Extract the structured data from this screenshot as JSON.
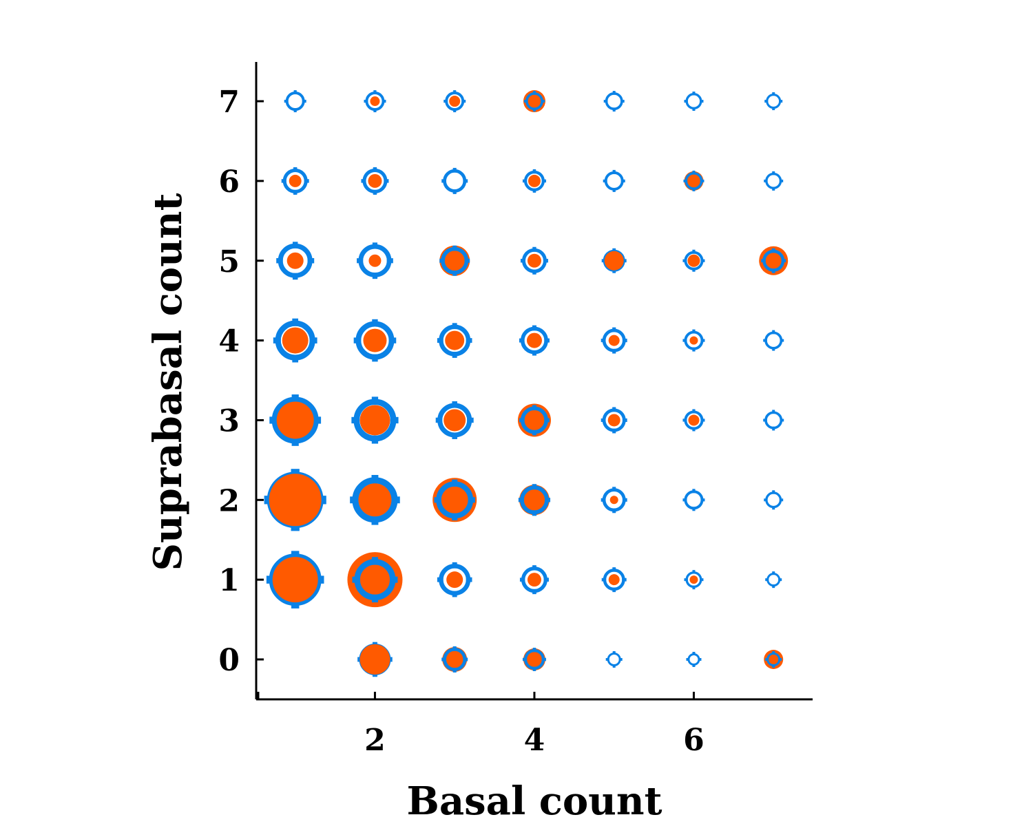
{
  "chart_data": {
    "type": "scatter",
    "title": "",
    "xlabel": "Basal count",
    "ylabel": "Suprabasal count",
    "xlim": [
      0.5,
      7.5
    ],
    "ylim": [
      -0.5,
      7.5
    ],
    "xticks": [
      2,
      4,
      6
    ],
    "yticks": [
      0,
      1,
      2,
      3,
      4,
      5,
      6,
      7
    ],
    "grid": false,
    "legend": "none",
    "marker_encoding": "bubble size = relative frequency; orange filled circle vs blue ring+cross",
    "colors": {
      "orange": "#ff5a00",
      "blue": "#0a82e6"
    },
    "series": [
      {
        "color": "#0a82e6",
        "marker": "ring-cross",
        "points": [
          {
            "x": 1,
            "y": 1,
            "r": 38
          },
          {
            "x": 1,
            "y": 2,
            "r": 41
          },
          {
            "x": 1,
            "y": 3,
            "r": 34
          },
          {
            "x": 1,
            "y": 4,
            "r": 29
          },
          {
            "x": 1,
            "y": 5,
            "r": 25
          },
          {
            "x": 1,
            "y": 6,
            "r": 18
          },
          {
            "x": 1,
            "y": 7,
            "r": 14
          },
          {
            "x": 2,
            "y": 0,
            "r": 23
          },
          {
            "x": 2,
            "y": 1,
            "r": 30
          },
          {
            "x": 2,
            "y": 2,
            "r": 33
          },
          {
            "x": 2,
            "y": 3,
            "r": 31
          },
          {
            "x": 2,
            "y": 4,
            "r": 28
          },
          {
            "x": 2,
            "y": 5,
            "r": 24
          },
          {
            "x": 2,
            "y": 6,
            "r": 18
          },
          {
            "x": 2,
            "y": 7,
            "r": 14
          },
          {
            "x": 3,
            "y": 0,
            "r": 17
          },
          {
            "x": 3,
            "y": 1,
            "r": 23
          },
          {
            "x": 3,
            "y": 2,
            "r": 27
          },
          {
            "x": 3,
            "y": 3,
            "r": 25
          },
          {
            "x": 3,
            "y": 4,
            "r": 23
          },
          {
            "x": 3,
            "y": 5,
            "r": 20
          },
          {
            "x": 3,
            "y": 6,
            "r": 17
          },
          {
            "x": 3,
            "y": 7,
            "r": 14
          },
          {
            "x": 4,
            "y": 0,
            "r": 15
          },
          {
            "x": 4,
            "y": 1,
            "r": 19
          },
          {
            "x": 4,
            "y": 2,
            "r": 21
          },
          {
            "x": 4,
            "y": 3,
            "r": 20
          },
          {
            "x": 4,
            "y": 4,
            "r": 20
          },
          {
            "x": 4,
            "y": 5,
            "r": 18
          },
          {
            "x": 4,
            "y": 6,
            "r": 15
          },
          {
            "x": 4,
            "y": 7,
            "r": 13
          },
          {
            "x": 5,
            "y": 0,
            "r": 10
          },
          {
            "x": 5,
            "y": 1,
            "r": 16
          },
          {
            "x": 5,
            "y": 2,
            "r": 17
          },
          {
            "x": 5,
            "y": 3,
            "r": 17
          },
          {
            "x": 5,
            "y": 4,
            "r": 17
          },
          {
            "x": 5,
            "y": 5,
            "r": 16
          },
          {
            "x": 5,
            "y": 6,
            "r": 14
          },
          {
            "x": 5,
            "y": 7,
            "r": 13
          },
          {
            "x": 6,
            "y": 0,
            "r": 9
          },
          {
            "x": 6,
            "y": 1,
            "r": 12
          },
          {
            "x": 6,
            "y": 2,
            "r": 14
          },
          {
            "x": 6,
            "y": 3,
            "r": 14
          },
          {
            "x": 6,
            "y": 4,
            "r": 14
          },
          {
            "x": 6,
            "y": 5,
            "r": 14
          },
          {
            "x": 6,
            "y": 6,
            "r": 13
          },
          {
            "x": 6,
            "y": 7,
            "r": 12
          },
          {
            "x": 7,
            "y": 0,
            "r": 10
          },
          {
            "x": 7,
            "y": 1,
            "r": 10
          },
          {
            "x": 7,
            "y": 2,
            "r": 12
          },
          {
            "x": 7,
            "y": 3,
            "r": 13
          },
          {
            "x": 7,
            "y": 4,
            "r": 13
          },
          {
            "x": 7,
            "y": 5,
            "r": 16
          },
          {
            "x": 7,
            "y": 6,
            "r": 12
          },
          {
            "x": 7,
            "y": 7,
            "r": 11
          }
        ]
      },
      {
        "color": "#ff5a00",
        "marker": "filled-circle",
        "points": [
          {
            "x": 1,
            "y": 1,
            "r": 33
          },
          {
            "x": 1,
            "y": 2,
            "r": 38
          },
          {
            "x": 1,
            "y": 3,
            "r": 27
          },
          {
            "x": 1,
            "y": 4,
            "r": 19
          },
          {
            "x": 1,
            "y": 5,
            "r": 12
          },
          {
            "x": 1,
            "y": 6,
            "r": 9
          },
          {
            "x": 1,
            "y": 7,
            "r": 0
          },
          {
            "x": 2,
            "y": 0,
            "r": 22
          },
          {
            "x": 2,
            "y": 1,
            "r": 40
          },
          {
            "x": 2,
            "y": 2,
            "r": 24
          },
          {
            "x": 2,
            "y": 3,
            "r": 22
          },
          {
            "x": 2,
            "y": 4,
            "r": 17
          },
          {
            "x": 2,
            "y": 5,
            "r": 9
          },
          {
            "x": 2,
            "y": 6,
            "r": 10
          },
          {
            "x": 2,
            "y": 7,
            "r": 7
          },
          {
            "x": 3,
            "y": 0,
            "r": 18
          },
          {
            "x": 3,
            "y": 1,
            "r": 12
          },
          {
            "x": 3,
            "y": 2,
            "r": 32
          },
          {
            "x": 3,
            "y": 3,
            "r": 16
          },
          {
            "x": 3,
            "y": 4,
            "r": 14
          },
          {
            "x": 3,
            "y": 5,
            "r": 22
          },
          {
            "x": 3,
            "y": 6,
            "r": 0
          },
          {
            "x": 3,
            "y": 7,
            "r": 8
          },
          {
            "x": 4,
            "y": 0,
            "r": 16
          },
          {
            "x": 4,
            "y": 1,
            "r": 10
          },
          {
            "x": 4,
            "y": 2,
            "r": 22
          },
          {
            "x": 4,
            "y": 3,
            "r": 24
          },
          {
            "x": 4,
            "y": 4,
            "r": 11
          },
          {
            "x": 4,
            "y": 5,
            "r": 10
          },
          {
            "x": 4,
            "y": 6,
            "r": 9
          },
          {
            "x": 4,
            "y": 7,
            "r": 16
          },
          {
            "x": 5,
            "y": 0,
            "r": 0
          },
          {
            "x": 5,
            "y": 1,
            "r": 8
          },
          {
            "x": 5,
            "y": 2,
            "r": 6
          },
          {
            "x": 5,
            "y": 3,
            "r": 9
          },
          {
            "x": 5,
            "y": 4,
            "r": 8
          },
          {
            "x": 5,
            "y": 5,
            "r": 14
          },
          {
            "x": 5,
            "y": 6,
            "r": 0
          },
          {
            "x": 5,
            "y": 7,
            "r": 0
          },
          {
            "x": 6,
            "y": 0,
            "r": 0
          },
          {
            "x": 6,
            "y": 1,
            "r": 6
          },
          {
            "x": 6,
            "y": 2,
            "r": 0
          },
          {
            "x": 6,
            "y": 3,
            "r": 8
          },
          {
            "x": 6,
            "y": 4,
            "r": 6
          },
          {
            "x": 6,
            "y": 5,
            "r": 9
          },
          {
            "x": 6,
            "y": 6,
            "r": 14
          },
          {
            "x": 6,
            "y": 7,
            "r": 0
          },
          {
            "x": 7,
            "y": 0,
            "r": 14
          },
          {
            "x": 7,
            "y": 1,
            "r": 0
          },
          {
            "x": 7,
            "y": 2,
            "r": 0
          },
          {
            "x": 7,
            "y": 3,
            "r": 0
          },
          {
            "x": 7,
            "y": 4,
            "r": 0
          },
          {
            "x": 7,
            "y": 5,
            "r": 21
          },
          {
            "x": 7,
            "y": 6,
            "r": 0
          },
          {
            "x": 7,
            "y": 7,
            "r": 0
          }
        ]
      }
    ]
  }
}
